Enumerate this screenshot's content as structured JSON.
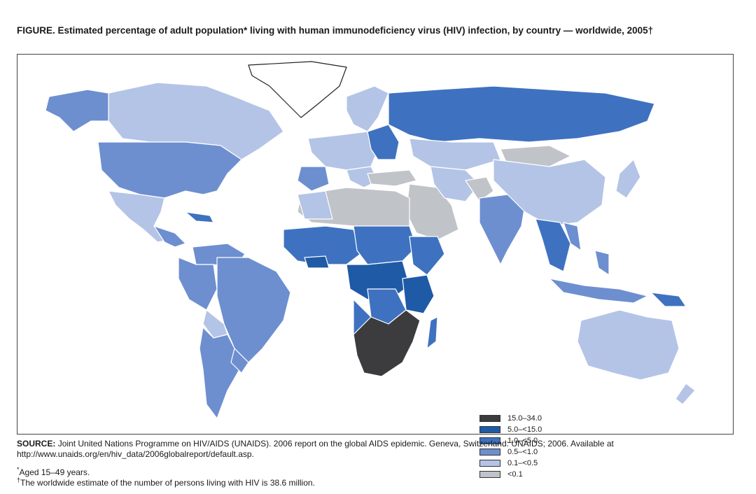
{
  "title": "FIGURE. Estimated percentage of adult population* living with human immunodeficiency virus (HIV) infection, by country — worldwide, 2005†",
  "legend": [
    {
      "label": "15.0–34.0",
      "color": "#3c3c3e"
    },
    {
      "label": "5.0–<15.0",
      "color": "#1f5aa6"
    },
    {
      "label": "1.0–<5.0",
      "color": "#3e72c0"
    },
    {
      "label": "0.5–<1.0",
      "color": "#6d8fd0"
    },
    {
      "label": "0.1–<0.5",
      "color": "#b4c4e6"
    },
    {
      "label": "<0.1",
      "color": "#c0c3c8"
    }
  ],
  "source": {
    "label": "SOURCE:",
    "text": "Joint United Nations Programme on HIV/AIDS (UNAIDS). 2006 report on the global AIDS epidemic. Geneva, Switzerland: UNAIDS; 2006. Available at http://www.unaids.org/en/hiv_data/2006globalreport/default.asp."
  },
  "footnotes": [
    {
      "mark": "*",
      "text": "Aged 15–49 years."
    },
    {
      "mark": "†",
      "text": "The worldwide estimate of the number of persons living with HIV is 38.6 million."
    }
  ]
}
